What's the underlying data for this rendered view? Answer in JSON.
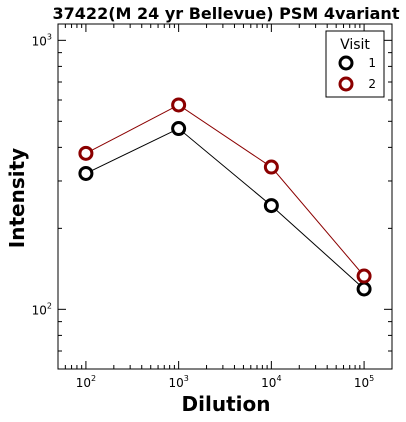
{
  "chart_data": {
    "type": "line",
    "title": "37422(M 24 yr Bellevue) PSM 4variant",
    "xlabel": "Dilution",
    "ylabel": "Intensity",
    "x_scale": "log",
    "y_scale": "log",
    "x": [
      100,
      1000,
      10000,
      100000
    ],
    "xlim": [
      50,
      200000
    ],
    "ylim": [
      60,
      1150
    ],
    "x_ticks": [
      {
        "value": 100,
        "base": "10",
        "exp": "2"
      },
      {
        "value": 1000,
        "base": "10",
        "exp": "3"
      },
      {
        "value": 10000,
        "base": "10",
        "exp": "4"
      },
      {
        "value": 100000,
        "base": "10",
        "exp": "5"
      }
    ],
    "y_ticks": [
      {
        "value": 100,
        "base": "10",
        "exp": "2"
      },
      {
        "value": 1000,
        "base": "10",
        "exp": "3"
      }
    ],
    "grid": false,
    "legend": {
      "title": "Visit",
      "placement": "top-right"
    },
    "series": [
      {
        "name": "1",
        "color": "#000000",
        "values": [
          320,
          470,
          243,
          119
        ]
      },
      {
        "name": "2",
        "color": "#8b0000",
        "values": [
          380,
          575,
          338,
          133
        ]
      }
    ]
  }
}
